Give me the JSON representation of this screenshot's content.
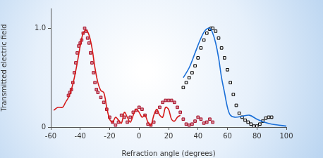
{
  "chart_data": {
    "type": "line",
    "x_label": "Refraction angle (degrees)",
    "y_label": "Transmitted electric field",
    "xlim": [
      -60,
      100
    ],
    "xticks": [
      -60,
      -40,
      -20,
      0,
      20,
      40,
      60,
      80,
      100
    ],
    "ylim": [
      0,
      1.2
    ],
    "yticks": [
      0,
      {
        "value": 1,
        "label": "1.0"
      }
    ],
    "grid": false,
    "series": [
      {
        "type": "line",
        "color": "#d41a1a",
        "line_style": "solid",
        "marker": "none",
        "x": [
          -58,
          -55,
          -52,
          -50,
          -48,
          -46,
          -44,
          -42,
          -40,
          -38,
          -36,
          -34,
          -32,
          -30,
          -28,
          -26,
          -24,
          -22,
          -20,
          -18,
          -16,
          -14,
          -12,
          -10,
          -8,
          -6,
          -4,
          -2,
          0,
          2,
          4,
          6,
          8,
          10,
          12,
          14,
          16,
          18,
          20,
          22,
          24,
          26,
          28
        ],
        "values": [
          0.17,
          0.2,
          0.2,
          0.25,
          0.3,
          0.38,
          0.5,
          0.65,
          0.82,
          0.95,
          0.98,
          0.93,
          0.8,
          0.6,
          0.45,
          0.37,
          0.35,
          0.2,
          0.08,
          0.05,
          0.1,
          0.07,
          0.04,
          0.15,
          0.1,
          0.05,
          0.12,
          0.18,
          0.15,
          0.1,
          0.12,
          0.05,
          0.02,
          0.12,
          0.18,
          0.12,
          0.1,
          0.2,
          0.18,
          0.08,
          0.06,
          0.1,
          0.12
        ]
      },
      {
        "type": "scatter",
        "color": "#a8102a",
        "line_style": "none",
        "marker": "square",
        "x": [
          -48,
          -47,
          -46,
          -45,
          -44,
          -43,
          -42,
          -41,
          -40,
          -39,
          -38,
          -37,
          -36,
          -35,
          -34,
          -33,
          -32,
          -31,
          -30,
          -29,
          -28,
          -26,
          -24,
          -22,
          -20,
          -18,
          -16,
          -14,
          -12,
          -10,
          -8,
          -6,
          -4,
          -2,
          0,
          2,
          4,
          6,
          8,
          10,
          12,
          14,
          16,
          18,
          20,
          22,
          24,
          26,
          28,
          30,
          32,
          34,
          36,
          38,
          40,
          42,
          44,
          46,
          48,
          50
        ],
        "values": [
          0.32,
          0.35,
          0.38,
          0.45,
          0.55,
          0.65,
          0.75,
          0.82,
          0.85,
          0.88,
          0.95,
          1.0,
          0.97,
          0.9,
          0.85,
          0.75,
          0.65,
          0.55,
          0.45,
          0.38,
          0.35,
          0.3,
          0.25,
          0.18,
          0.1,
          0.05,
          0.02,
          0.05,
          0.12,
          0.1,
          0.05,
          0.1,
          0.15,
          0.17,
          0.2,
          0.18,
          0.12,
          0.03,
          0.02,
          0.05,
          0.15,
          0.2,
          0.25,
          0.27,
          0.27,
          0.27,
          0.25,
          0.2,
          0.15,
          0.08,
          0.03,
          0.02,
          0.03,
          0.06,
          0.1,
          0.08,
          0.04,
          0.05,
          0.08,
          0.05
        ]
      },
      {
        "type": "line",
        "color": "#1a6fd8",
        "line_style": "solid",
        "marker": "none",
        "x": [
          30,
          34,
          38,
          42,
          45,
          48,
          50,
          52,
          54,
          56,
          58,
          60,
          62,
          65,
          70,
          75,
          80,
          85,
          90,
          95,
          100
        ],
        "values": [
          0.5,
          0.6,
          0.75,
          0.9,
          0.98,
          1.0,
          0.95,
          0.85,
          0.7,
          0.5,
          0.35,
          0.2,
          0.12,
          0.1,
          0.11,
          0.12,
          0.08,
          0.05,
          0.03,
          0.02,
          0.01
        ]
      },
      {
        "type": "scatter",
        "color": "#000000",
        "line_style": "none",
        "marker": "square",
        "x": [
          30,
          32,
          34,
          36,
          38,
          40,
          42,
          44,
          46,
          48,
          49,
          50,
          52,
          54,
          56,
          58,
          60,
          62,
          64,
          66,
          68,
          70,
          72,
          74,
          76,
          78,
          80,
          82,
          84,
          86,
          88,
          90
        ],
        "values": [
          0.4,
          0.45,
          0.5,
          0.55,
          0.62,
          0.7,
          0.8,
          0.88,
          0.95,
          0.99,
          1.0,
          1.0,
          0.97,
          0.9,
          0.8,
          0.7,
          0.58,
          0.45,
          0.33,
          0.22,
          0.14,
          0.1,
          0.07,
          0.05,
          0.03,
          0.01,
          0.01,
          0.03,
          0.06,
          0.09,
          0.1,
          0.1
        ]
      }
    ]
  }
}
